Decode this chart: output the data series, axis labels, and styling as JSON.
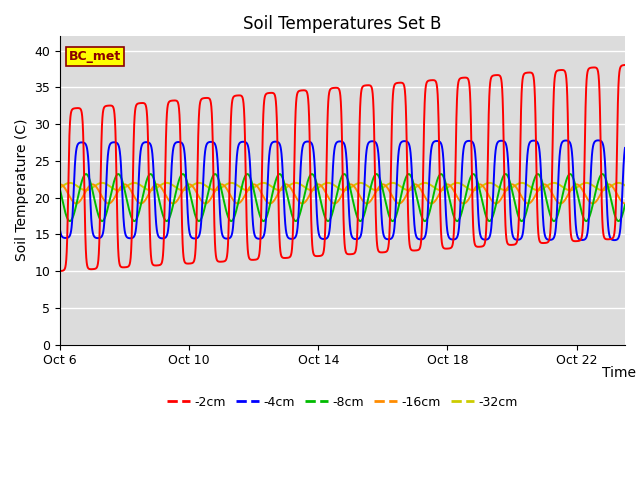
{
  "title": "Soil Temperatures Set B",
  "xlabel": "Time",
  "ylabel": "Soil Temperature (C)",
  "ylim": [
    0,
    42
  ],
  "xlim_days": [
    0,
    17.5
  ],
  "xtick_labels": [
    "Oct 6",
    "Oct 10",
    "Oct 14",
    "Oct 18",
    "Oct 22"
  ],
  "xtick_positions": [
    0,
    4,
    8,
    12,
    16
  ],
  "annotation_text": "BC_met",
  "annotation_bg": "#FFFF00",
  "annotation_border": "#8B0000",
  "colors": {
    "-2cm": "#FF0000",
    "-4cm": "#0000FF",
    "-8cm": "#00BB00",
    "-16cm": "#FF8C00",
    "-32cm": "#CCCC00"
  },
  "legend_labels": [
    "-2cm",
    "-4cm",
    "-8cm",
    "-16cm",
    "-32cm"
  ],
  "legend_colors": [
    "#FF0000",
    "#0000FF",
    "#00BB00",
    "#FF8C00",
    "#CCCC00"
  ],
  "bg_color": "#DCDCDC",
  "fig_bg": "#FFFFFF",
  "title_fontsize": 12,
  "label_fontsize": 10,
  "tick_fontsize": 9,
  "linewidth": 1.4
}
